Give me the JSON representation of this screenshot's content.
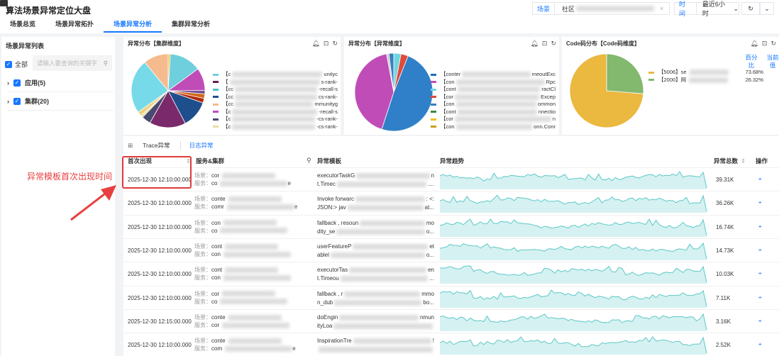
{
  "header": {
    "title": "算法场景异常定位大盘",
    "tabs": [
      "场景总览",
      "场景异常拓扑",
      "场景异常分析",
      "集群异常分析"
    ],
    "active_tab": 2,
    "scene_label": "场景",
    "scene_value": "社区",
    "time_label": "时间",
    "time_value": "最近6小时"
  },
  "sidebar": {
    "title": "场景异常列表",
    "all_label": "全部",
    "search_placeholder": "请输入要查询的关键字",
    "groups": [
      {
        "label": "应用(5)"
      },
      {
        "label": "集群(20)"
      }
    ]
  },
  "charts": [
    {
      "title": "异常分布【集群维度】",
      "type": "pie",
      "values": [
        1,
        14,
        10,
        1.5,
        2,
        2,
        12,
        16,
        4,
        1,
        2,
        24,
        11
      ],
      "colors": [
        "#e8c14a",
        "#6fcfdc",
        "#c04cb8",
        "#6b4a90",
        "#d2691e",
        "#b02a10",
        "#1f4e8c",
        "#7a2a6a",
        "#4a4a70",
        "#e8e0a0",
        "#f0d080",
        "#76dae8",
        "#f5bb8f"
      ],
      "legend": [
        {
          "prefix": "【c",
          "suffix": "unityc",
          "color": "#6fcfdc"
        },
        {
          "prefix": "【",
          "suffix": "s-rank-",
          "color": "#6a1a55"
        },
        {
          "prefix": "【cc",
          "suffix": "-recall-s",
          "color": "#4cc0c8"
        },
        {
          "prefix": "【cc",
          "suffix": "cs-rank-",
          "color": "#1f4e8c"
        },
        {
          "prefix": "【cc",
          "suffix": "mmunityg",
          "color": "#f5bb8f"
        },
        {
          "prefix": "【c",
          "suffix": "-recall-s",
          "color": "#c04cb8"
        },
        {
          "prefix": "【c",
          "suffix": "-cs-rank-",
          "color": "#4a4a70"
        },
        {
          "prefix": "【c",
          "suffix": "-cs-rank-",
          "color": "#e8e0a0"
        }
      ]
    },
    {
      "title": "异常分布【异常维度】",
      "type": "pie",
      "values": [
        3,
        3,
        49,
        42,
        1,
        2
      ],
      "colors": [
        "#6fd6e0",
        "#e04a3a",
        "#2f80c8",
        "#c04cb8",
        "#cccccc",
        "#3a7fc0"
      ],
      "legend": [
        {
          "prefix": "【conter",
          "suffix": "meoutExc",
          "color": "#1f6fb8"
        },
        {
          "prefix": "【con",
          "suffix": "Rpc",
          "color": "#c04cb8"
        },
        {
          "prefix": "【cont",
          "suffix": "ractCl",
          "color": "#6fd6e0"
        },
        {
          "prefix": "【cor",
          "suffix": "Excep",
          "color": "#e04a3a"
        },
        {
          "prefix": "【con",
          "suffix": "ommon",
          "color": "#3a7fc0"
        },
        {
          "prefix": "【cont",
          "suffix": "nnectio",
          "color": "#3a8a40"
        },
        {
          "prefix": "【cor",
          "suffix": "n",
          "color": "#f0c020"
        },
        {
          "prefix": "【con",
          "suffix": "onn.Conr",
          "color": "#c8a010"
        }
      ]
    },
    {
      "title": "Code码分布【Code码维度】",
      "type": "pie",
      "values": [
        26.32,
        73.68
      ],
      "colors": [
        "#82b96e",
        "#ebb840"
      ],
      "col_headers": [
        "百分比",
        "当前值"
      ],
      "legend": [
        {
          "prefix": "【5006】se",
          "percent": "73.68%",
          "color": "#ebb840"
        },
        {
          "prefix": "【2000】网",
          "percent": "26.32%",
          "color": "#82b96e"
        }
      ]
    }
  ],
  "table": {
    "subtabs": [
      "Trace异常",
      "日志异常"
    ],
    "active_subtab": 1,
    "columns": [
      "首次出现",
      "服务&集群",
      "异常模板",
      "异常趋势",
      "异常总数",
      "操作"
    ],
    "scene_label": "场景：",
    "service_label": "服务：",
    "rows": [
      {
        "time": "2025-12-30 12:10:00.000",
        "scene": "cor",
        "service": "co",
        "service_end": "e",
        "tpl1": "executorTaskG",
        "tpl1_end": "n",
        "tpl2": "t.Timec",
        "tpl2_end": "....",
        "total": "39.31K"
      },
      {
        "time": "2025-12-30 12:10:00.000",
        "scene": "conte",
        "service": "comr",
        "service_end": "e",
        "tpl1": "Invoke forwarc",
        "tpl1_end": ": <:",
        "tpl2": "JSON:> jav",
        "tpl2_end": "at...",
        "total": "36.26K"
      },
      {
        "time": "2025-12-30 12:10:00.000",
        "scene": "con",
        "service": "co",
        "service_end": "",
        "tpl1": "fallback , resoun",
        "tpl1_end": "mo",
        "tpl2": "dity_se",
        "tpl2_end": "o...",
        "total": "16.74K"
      },
      {
        "time": "2025-12-30 12:10:00.000",
        "scene": "cont",
        "service": "con",
        "service_end": "",
        "tpl1": "userFeatureP",
        "tpl1_end": "et",
        "tpl2": "ablel",
        "tpl2_end": "o...",
        "total": "14.73K"
      },
      {
        "time": "2025-12-30 12:10:00.000",
        "scene": "cont",
        "service": "con",
        "service_end": "",
        "tpl1": "executorTas",
        "tpl1_end": "en",
        "tpl2": "t.Timeou",
        "tpl2_end": "...",
        "total": "10.03K"
      },
      {
        "time": "2025-12-30 12:10:00.000",
        "scene": "cor",
        "service": "co",
        "service_end": "",
        "tpl1": "fallback , r",
        "tpl1_end": "mmo",
        "tpl2": "n_dub",
        "tpl2_end": "bo...",
        "total": "7.11K"
      },
      {
        "time": "2025-12-30 12:15:00.000",
        "scene": "conte",
        "service": "cor",
        "service_end": "",
        "tpl1": "doEngin",
        "tpl1_end": "nmun",
        "tpl2": "ityLoa",
        "tpl2_end": "",
        "total": "3.16K"
      },
      {
        "time": "2025-12-30 12:10:00.000",
        "scene": "conte",
        "service": "com",
        "service_end": "e",
        "tpl1": "InspirationTre",
        "tpl1_end": "!",
        "tpl2": "",
        "tpl2_end": "",
        "total": "2.52K"
      }
    ]
  },
  "annotation": "异常模板首次出现时间",
  "colors": {
    "accent": "#1677ff",
    "sparkline": "#5cc8c8",
    "annotation": "#e84040"
  }
}
